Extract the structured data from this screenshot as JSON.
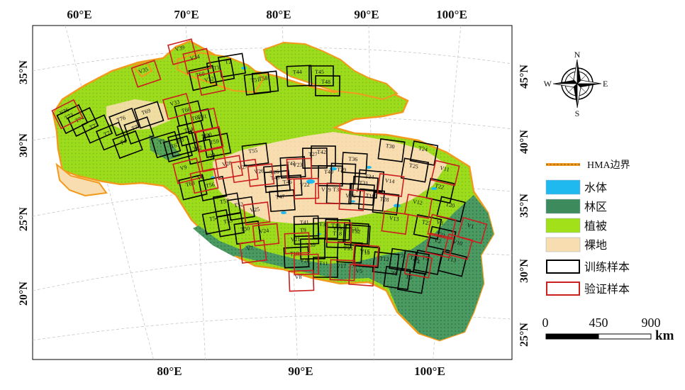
{
  "map": {
    "lon_ticks_top": [
      "60°E",
      "70°E",
      "80°E",
      "90°E",
      "100°E"
    ],
    "lon_ticks_bottom": [
      "80°E",
      "90°E",
      "100°E"
    ],
    "lat_ticks_left": [
      "35°N",
      "30°N",
      "25°N",
      "20°N"
    ],
    "lat_ticks_right": [
      "45°N",
      "40°N",
      "35°N",
      "30°N",
      "25°N"
    ]
  },
  "compass": {
    "n": "N",
    "s": "S",
    "e": "E",
    "w": "W"
  },
  "legend": {
    "boundary": "HMA边界",
    "water": "水体",
    "forest": "林区",
    "vegetation": "植被",
    "bare": "裸地",
    "train": "训练样本",
    "validation": "验证样本"
  },
  "scale": {
    "zero": "0",
    "mid": "450",
    "max": "900",
    "unit": "km"
  },
  "colors": {
    "boundary": "#f29a1d",
    "water": "#1fb8ef",
    "forest": "#3d8a5c",
    "vegetation": "#a2e01a",
    "bare": "#f8ddb0",
    "train": "#000000",
    "validation": "#cc1f1f"
  },
  "tiles": {
    "train": [
      "T69",
      "T76",
      "T74",
      "T73",
      "T72",
      "T71",
      "T75",
      "T4",
      "T64",
      "T62",
      "T63",
      "T65",
      "T66",
      "T67",
      "T3",
      "T61",
      "T68",
      "T59",
      "T58",
      "T57",
      "T60",
      "T56",
      "T55",
      "T54",
      "T53",
      "T52",
      "T51",
      "T50",
      "T49",
      "T48",
      "T47",
      "T46",
      "T45",
      "T44",
      "T43",
      "T42",
      "T41",
      "T40",
      "T39",
      "T38",
      "T37",
      "T36",
      "T35",
      "T34",
      "T33",
      "T32",
      "T31",
      "T30",
      "T29",
      "T28",
      "T27",
      "T26",
      "T25",
      "T24",
      "T23",
      "T22",
      "T21",
      "T20",
      "T19",
      "T18",
      "T17",
      "T16",
      "T15",
      "T14",
      "T13",
      "T12",
      "T11",
      "T10",
      "T9",
      "T8",
      "T7",
      "T6",
      "T5",
      "T2",
      "T1"
    ],
    "validation": [
      "V35",
      "V36",
      "V39",
      "V34",
      "V33",
      "V32",
      "V31",
      "V30",
      "V29",
      "V28",
      "V27",
      "V26",
      "V25",
      "V24",
      "V23",
      "V22",
      "V21",
      "V20",
      "V19",
      "V18",
      "V17",
      "V16",
      "V15",
      "V14",
      "V13",
      "V12",
      "V11",
      "V10",
      "V9",
      "V8",
      "V7",
      "V6",
      "V5",
      "V4",
      "V3",
      "V2",
      "V1"
    ]
  }
}
